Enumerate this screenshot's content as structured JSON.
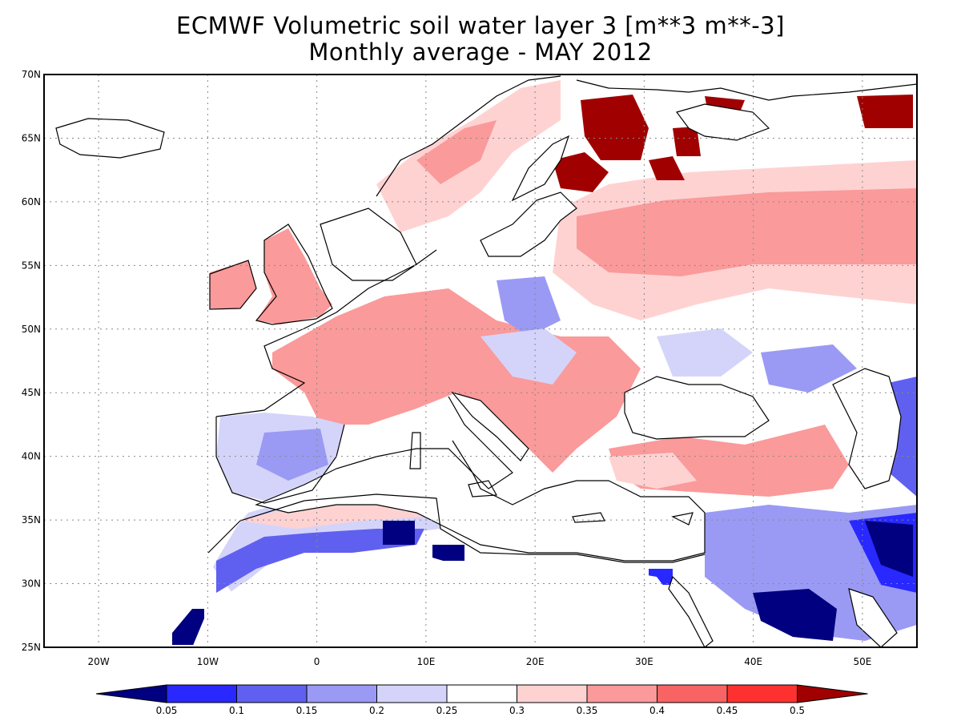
{
  "title_line1": "ECMWF Volumetric soil water layer 3 [m**3 m**-3]",
  "title_line2": "Monthly average - MAY 2012",
  "lat_labels": [
    "70N",
    "65N",
    "60N",
    "55N",
    "50N",
    "45N",
    "40N",
    "35N",
    "30N",
    "25N"
  ],
  "lon_labels": [
    "20W",
    "10W",
    "0",
    "10E",
    "20E",
    "30E",
    "40E",
    "50E"
  ],
  "colorbar": {
    "ticks": [
      "0.05",
      "0.1",
      "0.15",
      "0.2",
      "0.25",
      "0.3",
      "0.35",
      "0.4",
      "0.45",
      "0.5"
    ],
    "colors": [
      "#000080",
      "#2828ff",
      "#6060f0",
      "#9a9af4",
      "#d4d4fa",
      "#ffffff",
      "#ffd2d2",
      "#fa9a9a",
      "#f86464",
      "#ff3030",
      "#a00000"
    ]
  },
  "map_extent": {
    "lon_min": -25,
    "lon_max": 55,
    "lat_min": 25,
    "lat_max": 70
  }
}
